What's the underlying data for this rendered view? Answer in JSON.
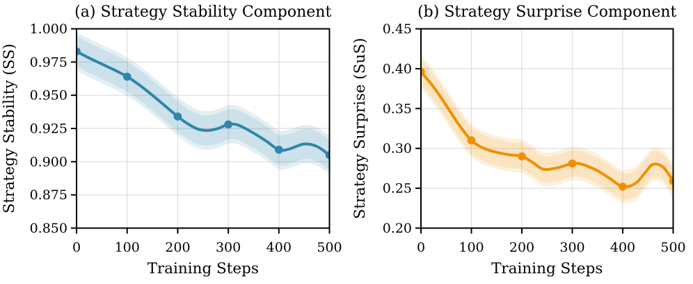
{
  "chart_data": [
    {
      "panel": "a",
      "type": "line",
      "title": "(a) Strategy Stability Component",
      "xlabel": "Training Steps",
      "ylabel": "Strategy Stability (SS)",
      "xlim": [
        0,
        500
      ],
      "ylim": [
        0.85,
        1.0
      ],
      "xticks": [
        0,
        100,
        200,
        300,
        400,
        500
      ],
      "xtick_labels": [
        "0",
        "100",
        "200",
        "300",
        "400",
        "500"
      ],
      "yticks": [
        0.85,
        0.875,
        0.9,
        0.925,
        0.95,
        0.975,
        1.0
      ],
      "ytick_labels": [
        "0.850",
        "0.875",
        "0.900",
        "0.925",
        "0.950",
        "0.975",
        "1.000"
      ],
      "grid": true,
      "line_color": "#2E86AB",
      "band_color": "#2E86AB",
      "band_halfwidth": 0.0145,
      "x": [
        0,
        100,
        200,
        300,
        400,
        500
      ],
      "y": [
        0.983,
        0.964,
        0.934,
        0.928,
        0.909,
        0.905
      ],
      "smooth_curve": {
        "x": [
          0,
          25,
          50,
          75,
          100,
          125,
          150,
          175,
          200,
          220,
          240,
          260,
          280,
          300,
          320,
          350,
          375,
          400,
          420,
          450,
          475,
          500
        ],
        "y": [
          0.983,
          0.978,
          0.9735,
          0.969,
          0.964,
          0.9575,
          0.95,
          0.942,
          0.934,
          0.9285,
          0.9245,
          0.9235,
          0.925,
          0.928,
          0.9275,
          0.9215,
          0.9155,
          0.909,
          0.9095,
          0.9133,
          0.9115,
          0.905
        ]
      },
      "layout": {
        "axes_rect": [
          110,
          41.5,
          363.5,
          287
        ],
        "ylabel_center_x": 20
      }
    },
    {
      "panel": "b",
      "type": "line",
      "title": "(b) Strategy Surprise Component",
      "xlabel": "Training Steps",
      "ylabel": "Strategy Surprise (SuS)",
      "xlim": [
        0,
        500
      ],
      "ylim": [
        0.2,
        0.45
      ],
      "xticks": [
        0,
        100,
        200,
        300,
        400,
        500
      ],
      "xtick_labels": [
        "0",
        "100",
        "200",
        "300",
        "400",
        "500"
      ],
      "yticks": [
        0.2,
        0.25,
        0.3,
        0.35,
        0.4,
        0.45
      ],
      "ytick_labels": [
        "0.20",
        "0.25",
        "0.30",
        "0.35",
        "0.40",
        "0.45"
      ],
      "grid": true,
      "line_color": "#F18F01",
      "band_color": "#F18F01",
      "band_halfwidth": 0.021,
      "x": [
        0,
        100,
        200,
        300,
        400,
        500
      ],
      "y": [
        0.396,
        0.31,
        0.29,
        0.281,
        0.252,
        0.259
      ],
      "smooth_curve": {
        "x": [
          0,
          25,
          50,
          75,
          100,
          125,
          150,
          175,
          200,
          220,
          242,
          270,
          300,
          320,
          350,
          375,
          400,
          425,
          445,
          460,
          480,
          500
        ],
        "y": [
          0.396,
          0.377,
          0.354,
          0.33,
          0.31,
          0.3,
          0.295,
          0.292,
          0.29,
          0.283,
          0.274,
          0.2755,
          0.281,
          0.28,
          0.272,
          0.262,
          0.252,
          0.256,
          0.27,
          0.28,
          0.2765,
          0.259
        ]
      },
      "layout": {
        "axes_rect": [
          605,
          41.5,
          362.5,
          287
        ],
        "ylabel_center_x": 524
      }
    }
  ],
  "style": {
    "grid_color": "#DCDCDC",
    "spine_color": "#000000",
    "background": "#ffffff"
  }
}
